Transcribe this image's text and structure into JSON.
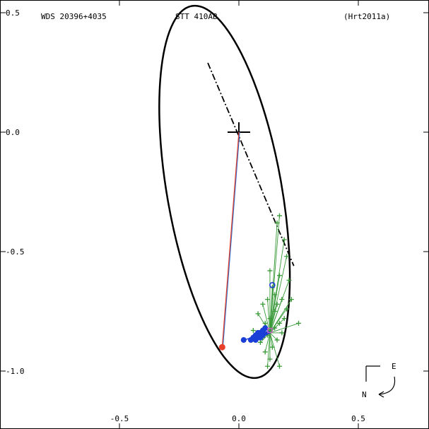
{
  "header": {
    "left": "WDS 20396+4035",
    "center": "STT 410AB",
    "right": "(Hrt2011a)"
  },
  "compass": {
    "east_label": "E",
    "north_label": "N"
  },
  "colors": {
    "orbit": "#000000",
    "green_obs": "#3a9a3a",
    "blue_obs": "#1a3fd6",
    "red_marker": "#e8402a",
    "magenta_obs": "#d060c8",
    "connector_red": "#e8402a",
    "connector_blue": "#2a6fd0"
  },
  "chart_data": {
    "type": "scatter",
    "title": "",
    "xlabel": "",
    "ylabel": "",
    "xlim": [
      -1.0,
      0.8
    ],
    "ylim": [
      -1.2,
      0.5
    ],
    "x_ticks": [
      -0.5,
      0.0,
      0.5
    ],
    "x_tick_labels": [
      "-0.5",
      "0.0",
      "0.5"
    ],
    "y_ticks": [
      0.5,
      0.0,
      -0.5,
      -1.0
    ],
    "y_tick_labels": [
      "0.5",
      "0.0",
      "-0.5",
      "-1.0"
    ],
    "grid": false,
    "orbit_ellipse": {
      "center": [
        -0.06,
        -0.25
      ],
      "semi_axis_a": 0.79,
      "semi_axis_b": 0.24,
      "angle_deg": 80
    },
    "primary_star": [
      0.0,
      0.0
    ],
    "line_of_nodes": [
      [
        -0.13,
        0.29
      ],
      [
        0.23,
        -0.56
      ]
    ],
    "red_position": [
      -0.07,
      -0.9
    ],
    "green_observations": [
      [
        0.16,
        -0.38
      ],
      [
        0.17,
        -0.35
      ],
      [
        0.19,
        -0.45
      ],
      [
        0.2,
        -0.52
      ],
      [
        0.17,
        -0.6
      ],
      [
        0.13,
        -0.58
      ],
      [
        0.21,
        -0.62
      ],
      [
        0.14,
        -0.65
      ],
      [
        0.12,
        -0.7
      ],
      [
        0.16,
        -0.72
      ],
      [
        0.18,
        -0.7
      ],
      [
        0.15,
        -0.75
      ],
      [
        0.1,
        -0.72
      ],
      [
        0.13,
        -0.78
      ],
      [
        0.17,
        -0.8
      ],
      [
        0.19,
        -0.78
      ],
      [
        0.11,
        -0.8
      ],
      [
        0.08,
        -0.76
      ],
      [
        0.15,
        -0.82
      ],
      [
        0.12,
        -0.85
      ],
      [
        0.16,
        -0.87
      ],
      [
        0.18,
        -0.84
      ],
      [
        0.1,
        -0.86
      ],
      [
        0.14,
        -0.9
      ],
      [
        0.11,
        -0.92
      ],
      [
        0.13,
        -0.95
      ],
      [
        0.17,
        -0.98
      ],
      [
        0.12,
        -0.98
      ],
      [
        0.2,
        -0.74
      ],
      [
        0.22,
        -0.7
      ],
      [
        0.25,
        -0.8
      ],
      [
        0.15,
        -0.68
      ],
      [
        0.09,
        -0.88
      ],
      [
        0.06,
        -0.83
      ]
    ],
    "blue_observations": [
      [
        0.07,
        -0.85
      ],
      [
        0.08,
        -0.86
      ],
      [
        0.09,
        -0.84
      ],
      [
        0.1,
        -0.85
      ],
      [
        0.08,
        -0.84
      ],
      [
        0.09,
        -0.86
      ],
      [
        0.06,
        -0.86
      ],
      [
        0.1,
        -0.83
      ],
      [
        0.11,
        -0.82
      ],
      [
        0.07,
        -0.87
      ],
      [
        0.05,
        -0.87
      ],
      [
        0.09,
        -0.85
      ],
      [
        0.02,
        -0.87
      ]
    ],
    "blue_open_point": [
      0.14,
      -0.64
    ],
    "magenta_observations": [
      [
        0.13,
        -0.83
      ]
    ]
  }
}
